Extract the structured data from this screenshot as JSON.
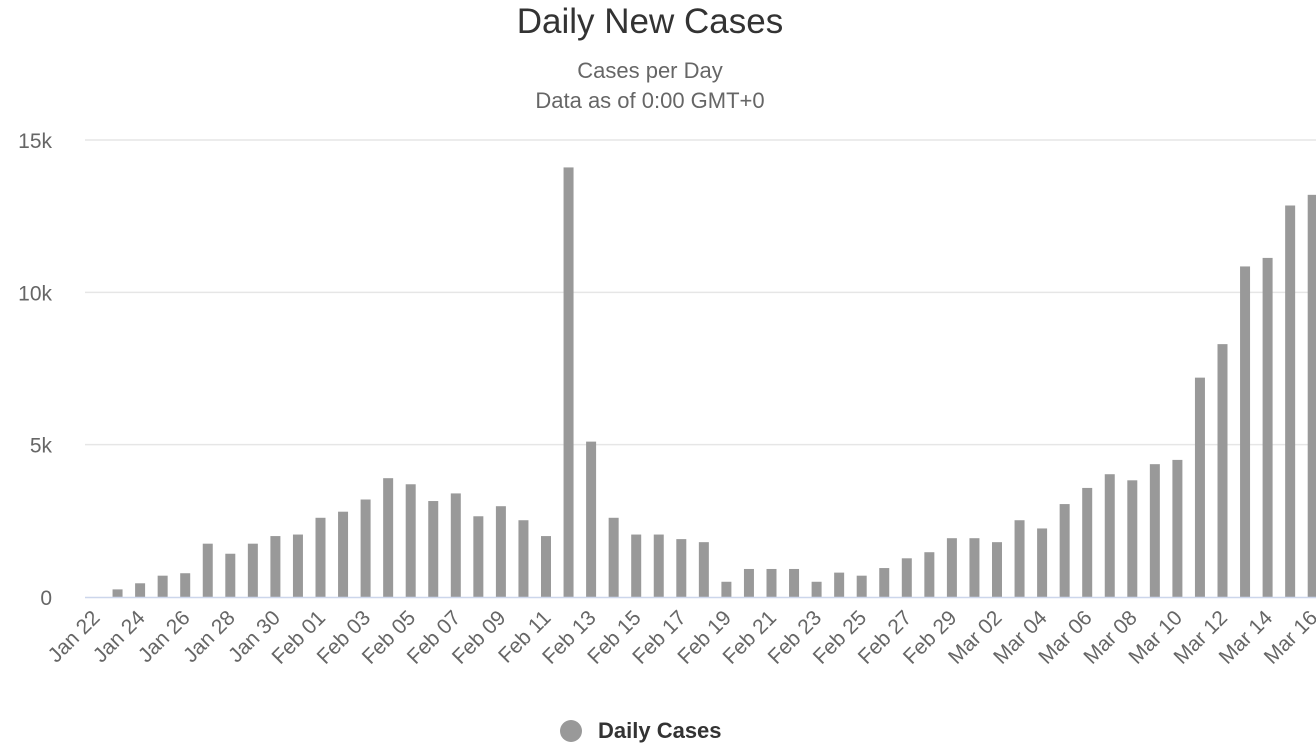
{
  "chart_data": {
    "type": "bar",
    "title": "Daily New Cases",
    "subtitle": [
      "Cases per Day",
      "Data as of 0:00 GMT+0"
    ],
    "xlabel": "",
    "ylabel": "",
    "ylim": [
      0,
      15000
    ],
    "yticks": [
      0,
      5000,
      10000,
      15000
    ],
    "ytick_labels": [
      "0",
      "5k",
      "10k",
      "15k"
    ],
    "grid": true,
    "legend_position": "bottom",
    "bar_color": "#999999",
    "categories": [
      "Jan 22",
      "Jan 23",
      "Jan 24",
      "Jan 25",
      "Jan 26",
      "Jan 27",
      "Jan 28",
      "Jan 29",
      "Jan 30",
      "Jan 31",
      "Feb 01",
      "Feb 02",
      "Feb 03",
      "Feb 04",
      "Feb 05",
      "Feb 06",
      "Feb 07",
      "Feb 08",
      "Feb 09",
      "Feb 10",
      "Feb 11",
      "Feb 12",
      "Feb 13",
      "Feb 14",
      "Feb 15",
      "Feb 16",
      "Feb 17",
      "Feb 18",
      "Feb 19",
      "Feb 20",
      "Feb 21",
      "Feb 22",
      "Feb 23",
      "Feb 24",
      "Feb 25",
      "Feb 26",
      "Feb 27",
      "Feb 28",
      "Feb 29",
      "Mar 01",
      "Mar 02",
      "Mar 03",
      "Mar 04",
      "Mar 05",
      "Mar 06",
      "Mar 07",
      "Mar 08",
      "Mar 09",
      "Mar 10",
      "Mar 11",
      "Mar 12",
      "Mar 13",
      "Mar 14",
      "Mar 15",
      "Mar 16"
    ],
    "tick_labels": [
      "Jan 22",
      "Jan 24",
      "Jan 26",
      "Jan 28",
      "Jan 30",
      "Feb 01",
      "Feb 03",
      "Feb 05",
      "Feb 07",
      "Feb 09",
      "Feb 11",
      "Feb 13",
      "Feb 15",
      "Feb 17",
      "Feb 19",
      "Feb 21",
      "Feb 23",
      "Feb 25",
      "Feb 27",
      "Feb 29",
      "Mar 02",
      "Mar 04",
      "Mar 06",
      "Mar 08",
      "Mar 10",
      "Mar 12",
      "Mar 14",
      "Mar 16"
    ],
    "series": [
      {
        "name": "Daily Cases",
        "values": [
          0,
          250,
          450,
          700,
          780,
          1750,
          1420,
          1750,
          2000,
          2050,
          2600,
          2800,
          3200,
          3900,
          3700,
          3150,
          3400,
          2650,
          2980,
          2520,
          2000,
          14100,
          5100,
          2600,
          2050,
          2050,
          1900,
          1800,
          500,
          920,
          920,
          920,
          500,
          800,
          700,
          950,
          1270,
          1470,
          1930,
          1930,
          1800,
          2520,
          2250,
          3050,
          3580,
          4030,
          3830,
          4360,
          4500,
          7200,
          8300,
          10850,
          11130,
          12850,
          13200
        ]
      }
    ]
  }
}
